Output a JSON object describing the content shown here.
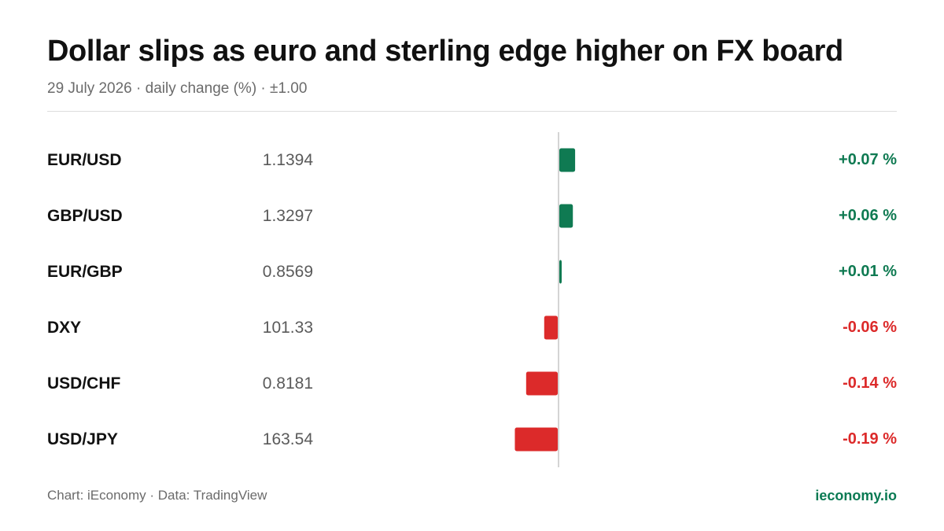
{
  "header": {
    "title": "Dollar slips as euro and sterling edge higher on FX board",
    "subtitle": "29 July 2026 · daily change (%) · ±1.00"
  },
  "footer": {
    "credit": "Chart: iEconomy · Data: TradingView",
    "brand": "ieconomy.io"
  },
  "colors": {
    "positive": "#0f7a52",
    "negative": "#dc2a2a",
    "axis": "#d4d4d4"
  },
  "chart_data": {
    "type": "bar",
    "orientation": "horizontal",
    "title": "Dollar slips as euro and sterling edge higher on FX board",
    "subtitle": "29 July 2026 · daily change (%) · ±1.00",
    "xlim": [
      -1.0,
      1.0
    ],
    "rows": [
      {
        "pair": "EUR/USD",
        "price": "1.1394",
        "change": 0.07,
        "change_label": "+0.07 %"
      },
      {
        "pair": "GBP/USD",
        "price": "1.3297",
        "change": 0.06,
        "change_label": "+0.06 %"
      },
      {
        "pair": "EUR/GBP",
        "price": "0.8569",
        "change": 0.01,
        "change_label": "+0.01 %"
      },
      {
        "pair": "DXY",
        "price": "101.33",
        "change": -0.06,
        "change_label": "-0.06 %"
      },
      {
        "pair": "USD/CHF",
        "price": "0.8181",
        "change": -0.14,
        "change_label": "-0.14 %"
      },
      {
        "pair": "USD/JPY",
        "price": "163.54",
        "change": -0.19,
        "change_label": "-0.19 %"
      }
    ]
  }
}
